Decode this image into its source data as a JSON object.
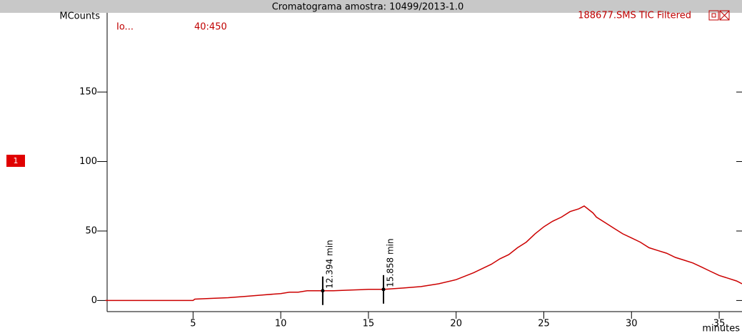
{
  "chart_data": {
    "type": "line",
    "title": "Cromatograma amostra: 10499/2013-1.0",
    "subtitle": "188677.SMS TIC Filtered",
    "trace_label": "Io...",
    "mass_range": "40:450",
    "badge": "1",
    "y_label": "MCounts",
    "x_label": "minutes",
    "xlim": [
      0.1,
      36.3
    ],
    "ylim": [
      -8,
      207
    ],
    "xticks": [
      5,
      10,
      15,
      20,
      25,
      30,
      35
    ],
    "yticks": [
      0,
      50,
      100,
      150
    ],
    "grid": false,
    "series": [
      {
        "color": "#cc0000",
        "x": [
          0,
          5,
          5.1,
          6,
          7,
          8,
          9,
          10,
          10.5,
          11,
          11.5,
          12,
          12.4,
          13,
          14,
          15,
          15.9,
          17,
          18,
          19,
          20,
          21,
          21.5,
          22,
          22.5,
          23,
          23.5,
          24,
          24.5,
          25,
          25.5,
          26,
          26.5,
          27,
          27.3,
          27.8,
          28,
          28.5,
          29,
          29.5,
          30,
          30.5,
          31,
          31.5,
          32,
          32.5,
          33,
          33.5,
          34,
          34.5,
          35,
          35.5,
          36,
          36.3
        ],
        "values": [
          0,
          0,
          1,
          1.5,
          2,
          3,
          4,
          5,
          6,
          6,
          7,
          7,
          7,
          7,
          7.5,
          8,
          8,
          9,
          10,
          12,
          15,
          20,
          23,
          26,
          30,
          33,
          38,
          42,
          48,
          53,
          57,
          60,
          64,
          66,
          68,
          63,
          60,
          56,
          52,
          48,
          45,
          42,
          38,
          36,
          34,
          31,
          29,
          27,
          24,
          21,
          18,
          16,
          14,
          12
        ]
      }
    ],
    "markers": [
      {
        "x": 12.394,
        "y": 7,
        "label": "12.394 min"
      },
      {
        "x": 15.858,
        "y": 8,
        "label": "15.858 min"
      }
    ]
  }
}
